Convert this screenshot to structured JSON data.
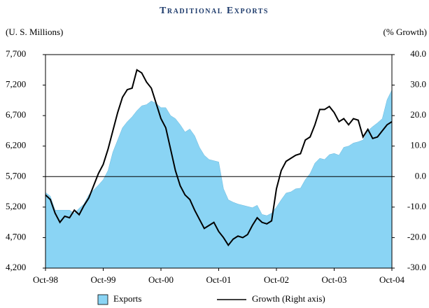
{
  "chart_data": {
    "type": "area-line",
    "title": "Traditional Exports",
    "y_label": "(U. S. Millions)",
    "y2_label": "(% Growth)",
    "categories": [
      "Oct-98",
      null,
      null,
      null,
      null,
      null,
      null,
      null,
      null,
      null,
      null,
      null,
      "Oct-99",
      null,
      null,
      null,
      null,
      null,
      null,
      null,
      null,
      null,
      null,
      null,
      "Oct-00",
      null,
      null,
      null,
      null,
      null,
      null,
      null,
      null,
      null,
      null,
      null,
      "Oct-01",
      null,
      null,
      null,
      null,
      null,
      null,
      null,
      null,
      null,
      null,
      null,
      "Oct-02",
      null,
      null,
      null,
      null,
      null,
      null,
      null,
      null,
      null,
      null,
      null,
      "Oct-03",
      null,
      null,
      null,
      null,
      null,
      null,
      null,
      null,
      null,
      null,
      null,
      "Oct-04"
    ],
    "series": [
      {
        "name": "Exports",
        "color": "#8ad4f4",
        "values": [
          5440,
          5380,
          5150,
          5150,
          5150,
          5150,
          5100,
          5180,
          5250,
          5400,
          5480,
          5560,
          5650,
          5800,
          6100,
          6300,
          6500,
          6600,
          6680,
          6780,
          6860,
          6880,
          6940,
          6900,
          6830,
          6830,
          6700,
          6650,
          6550,
          6430,
          6480,
          6370,
          6180,
          6050,
          5980,
          5960,
          5940,
          5500,
          5320,
          5280,
          5250,
          5230,
          5210,
          5190,
          5230,
          5080,
          5060,
          5100,
          5200,
          5320,
          5430,
          5450,
          5500,
          5510,
          5650,
          5750,
          5920,
          6000,
          5980,
          6060,
          6080,
          6050,
          6180,
          6200,
          6250,
          6270,
          6300,
          6450,
          6520,
          6580,
          6650,
          6960,
          7120
        ]
      },
      {
        "name": "Growth (Right axis)",
        "color": "#000000",
        "axis": "y2",
        "values": [
          -6,
          -7.5,
          -12,
          -15,
          -13,
          -13.5,
          -11,
          -12.5,
          -9.5,
          -7,
          -3,
          1,
          4,
          9,
          15,
          21,
          26,
          28.5,
          29,
          35,
          34,
          31,
          29,
          24,
          19,
          16,
          9,
          2,
          -3,
          -6,
          -7.5,
          -11,
          -14,
          -17,
          -16,
          -15,
          -18,
          -20,
          -22.5,
          -20.5,
          -19.5,
          -20,
          -19,
          -16,
          -13.5,
          -15,
          -15.5,
          -14.5,
          -4,
          2,
          5,
          6,
          7,
          7.5,
          12,
          13,
          17,
          22,
          22,
          23,
          21,
          18,
          19,
          17,
          19,
          18.5,
          13,
          15.5,
          12.5,
          13,
          15,
          17,
          18
        ]
      }
    ],
    "ylim": [
      4200,
      7700
    ],
    "yticks": [
      {
        "value": 4200,
        "label": "4,200"
      },
      {
        "value": 4700,
        "label": "4,700"
      },
      {
        "value": 5200,
        "label": "5,200"
      },
      {
        "value": 5700,
        "label": "5,700"
      },
      {
        "value": 6200,
        "label": "6,200"
      },
      {
        "value": 6700,
        "label": "6,700"
      },
      {
        "value": 7200,
        "label": "7,200"
      },
      {
        "value": 7700,
        "label": "7,700"
      }
    ],
    "y2lim": [
      -30,
      40
    ],
    "y2ticks": [
      {
        "value": -30,
        "label": "-30.0"
      },
      {
        "value": -20,
        "label": "-20.0"
      },
      {
        "value": -10,
        "label": "-10.0"
      },
      {
        "value": 0,
        "label": "0.0"
      },
      {
        "value": 10,
        "label": "10.0"
      },
      {
        "value": 20,
        "label": "20.0"
      },
      {
        "value": 30,
        "label": "30.0"
      },
      {
        "value": 40,
        "label": "40.0"
      }
    ],
    "reference_line_y2": 0,
    "legend": "bottom"
  }
}
